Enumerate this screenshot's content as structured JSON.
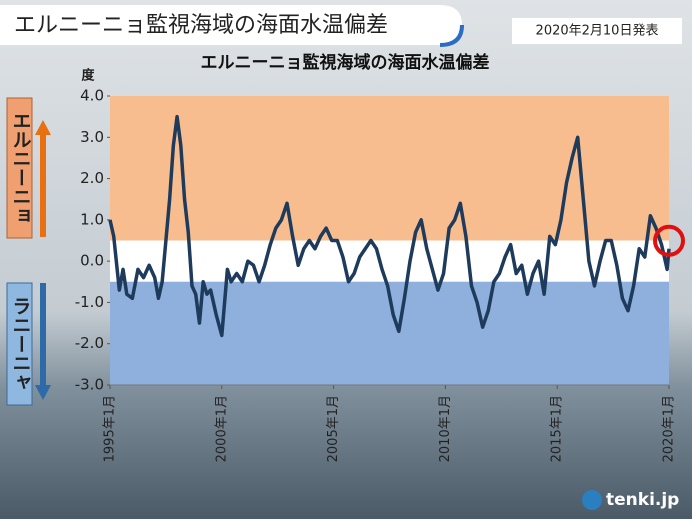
{
  "header": {
    "title": "エルニーニョ監視海域の海面水温偏差",
    "date": "2020年2月10日発表"
  },
  "side_labels": {
    "el_nino": "エルニーニョ",
    "la_nina": "ラニーニャ"
  },
  "logo": "tenki.jp",
  "chart_data": {
    "type": "line",
    "title": "エルニーニョ監視海域の海面水温偏差",
    "y_label": "度",
    "x": [
      "1995-01",
      "1995-03",
      "1995-06",
      "1995-08",
      "1995-10",
      "1996-01",
      "1996-04",
      "1996-07",
      "1996-10",
      "1997-01",
      "1997-03",
      "1997-05",
      "1997-07",
      "1997-09",
      "1997-11",
      "1998-01",
      "1998-03",
      "1998-05",
      "1998-07",
      "1998-09",
      "1998-11",
      "1999-01",
      "1999-03",
      "1999-05",
      "1999-07",
      "1999-10",
      "2000-01",
      "2000-04",
      "2000-06",
      "2000-09",
      "2000-12",
      "2001-03",
      "2001-06",
      "2001-09",
      "2001-12",
      "2002-03",
      "2002-06",
      "2002-09",
      "2002-12",
      "2003-03",
      "2003-06",
      "2003-09",
      "2003-12",
      "2004-03",
      "2004-06",
      "2004-09",
      "2004-12",
      "2005-03",
      "2005-06",
      "2005-09",
      "2005-12",
      "2006-03",
      "2006-06",
      "2006-09",
      "2006-12",
      "2007-03",
      "2007-06",
      "2007-09",
      "2007-12",
      "2008-03",
      "2008-06",
      "2008-09",
      "2008-12",
      "2009-03",
      "2009-06",
      "2009-09",
      "2009-12",
      "2010-03",
      "2010-06",
      "2010-09",
      "2010-12",
      "2011-03",
      "2011-06",
      "2011-09",
      "2011-12",
      "2012-03",
      "2012-06",
      "2012-09",
      "2012-12",
      "2013-03",
      "2013-06",
      "2013-09",
      "2013-12",
      "2014-03",
      "2014-06",
      "2014-09",
      "2014-12",
      "2015-03",
      "2015-06",
      "2015-09",
      "2015-12",
      "2016-03",
      "2016-06",
      "2016-09",
      "2016-12",
      "2017-03",
      "2017-06",
      "2017-09",
      "2017-12",
      "2018-03",
      "2018-06",
      "2018-09",
      "2018-12",
      "2019-03",
      "2019-06",
      "2019-09",
      "2019-12",
      "2020-01"
    ],
    "series": [
      {
        "name": "海面水温偏差",
        "color": "#1f3b5c",
        "values": [
          1.0,
          0.6,
          -0.7,
          -0.2,
          -0.8,
          -0.9,
          -0.2,
          -0.4,
          -0.1,
          -0.4,
          -0.9,
          -0.5,
          0.5,
          1.5,
          2.8,
          3.5,
          2.8,
          1.5,
          0.7,
          -0.6,
          -0.8,
          -1.5,
          -0.5,
          -0.8,
          -0.7,
          -1.3,
          -1.8,
          -0.2,
          -0.5,
          -0.3,
          -0.5,
          0.0,
          -0.1,
          -0.5,
          -0.1,
          0.4,
          0.8,
          1.0,
          1.4,
          0.6,
          -0.1,
          0.3,
          0.5,
          0.3,
          0.6,
          0.8,
          0.5,
          0.5,
          0.1,
          -0.5,
          -0.3,
          0.1,
          0.3,
          0.5,
          0.3,
          -0.2,
          -0.6,
          -1.3,
          -1.7,
          -0.9,
          0.0,
          0.7,
          1.0,
          0.3,
          -0.2,
          -0.7,
          -0.3,
          0.8,
          1.0,
          1.4,
          0.6,
          -0.6,
          -1.0,
          -1.6,
          -1.2,
          -0.5,
          -0.3,
          0.1,
          0.4,
          -0.3,
          -0.1,
          -0.8,
          -0.3,
          0.0,
          -0.8,
          0.6,
          0.4,
          1.0,
          1.9,
          2.5,
          3.0,
          1.5,
          0.0,
          -0.6,
          0.0,
          0.5,
          0.5,
          -0.1,
          -0.9,
          -1.2,
          -0.6,
          0.3,
          0.1,
          1.1,
          0.8,
          0.4,
          -0.2,
          0.3
        ]
      }
    ],
    "xlim": [
      "1995-01",
      "2020-01"
    ],
    "xticks": [
      {
        "value": "1995-01",
        "label": "1995年1月"
      },
      {
        "value": "2000-01",
        "label": "2000年1月"
      },
      {
        "value": "2005-01",
        "label": "2005年1月"
      },
      {
        "value": "2010-01",
        "label": "2010年1月"
      },
      {
        "value": "2015-01",
        "label": "2015年1月"
      },
      {
        "value": "2020-01",
        "label": "2020年1月"
      }
    ],
    "ylim": [
      -3,
      4
    ],
    "yticks": [
      {
        "value": 4,
        "label": "4.0"
      },
      {
        "value": 3,
        "label": "3.0"
      },
      {
        "value": 2,
        "label": "2.0"
      },
      {
        "value": 1,
        "label": "1.0"
      },
      {
        "value": 0,
        "label": "0.0"
      },
      {
        "value": -1,
        "label": "-1.0"
      },
      {
        "value": -2,
        "label": "-2.0"
      },
      {
        "value": -3,
        "label": "-3.0"
      }
    ],
    "bands": [
      {
        "from": 0.5,
        "to": 4,
        "color": "#f7bd8f"
      },
      {
        "from": -0.5,
        "to": 0.5,
        "color": "#ffffff"
      },
      {
        "from": -3,
        "to": -0.5,
        "color": "#8fb0dc"
      }
    ]
  }
}
